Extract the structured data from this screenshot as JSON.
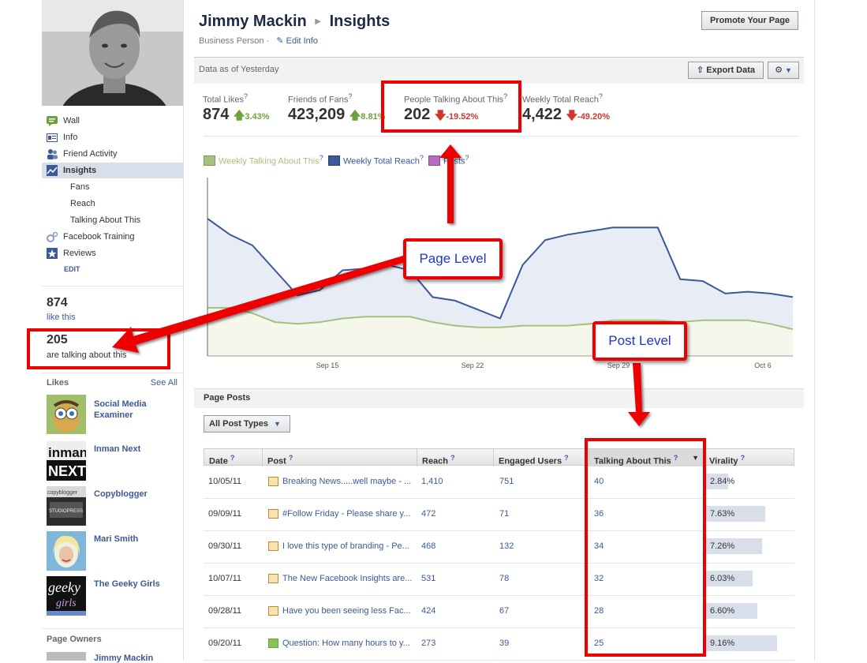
{
  "page": {
    "name": "Jimmy Mackin",
    "section": "Insights",
    "subtitle": "Business Person ·",
    "edit_info": "Edit Info",
    "promote_button": "Promote Your Page",
    "data_as_of": "Data as of Yesterday",
    "export_button": "Export Data"
  },
  "sidebar": {
    "nav": [
      {
        "label": "Wall",
        "icon": "wall-icon"
      },
      {
        "label": "Info",
        "icon": "info-icon"
      },
      {
        "label": "Friend Activity",
        "icon": "friends-icon"
      },
      {
        "label": "Insights",
        "icon": "insights-icon",
        "active": true
      }
    ],
    "subnav": [
      "Fans",
      "Reach",
      "Talking About This"
    ],
    "nav2": [
      {
        "label": "Facebook Training",
        "icon": "gears-icon"
      },
      {
        "label": "Reviews",
        "icon": "star-icon"
      }
    ],
    "edit": "EDIT",
    "likes_count": "874",
    "likes_text": "like this",
    "talking_count": "205",
    "talking_text": "are talking about this",
    "likes_header": "Likes",
    "see_all": "See All",
    "liked_pages": [
      "Social Media Examiner",
      "Inman Next",
      "Copyblogger",
      "Mari Smith",
      "The Geeky Girls"
    ],
    "owners_header": "Page Owners",
    "owner_name": "Jimmy Mackin"
  },
  "stats": [
    {
      "label": "Total Likes",
      "value": "874",
      "change": "3.43%",
      "direction": "up"
    },
    {
      "label": "Friends of Fans",
      "value": "423,209",
      "change": "8.81%",
      "direction": "up"
    },
    {
      "label": "People Talking About This",
      "value": "202",
      "change": "-19.52%",
      "direction": "down"
    },
    {
      "label": "Weekly Total Reach",
      "value": "4,422",
      "change": "-49.20%",
      "direction": "down"
    }
  ],
  "legend": [
    {
      "label": "Weekly Talking About This",
      "color": "#a6c17d"
    },
    {
      "label": "Weekly Total Reach",
      "color": "#3b5998"
    },
    {
      "label": "Posts",
      "color": "#b86bc0"
    }
  ],
  "chart_data": {
    "type": "area",
    "x_ticks": [
      "Sep 15",
      "Sep 22",
      "Sep 29",
      "Oct 6"
    ],
    "series": [
      {
        "name": "Weekly Total Reach",
        "color": "#3b5998",
        "values": [
          0.77,
          0.68,
          0.62,
          0.48,
          0.34,
          0.37,
          0.48,
          0.49,
          0.51,
          0.48,
          0.33,
          0.31,
          0.26,
          0.21,
          0.51,
          0.65,
          0.68,
          0.7,
          0.72,
          0.72,
          0.72,
          0.43,
          0.42,
          0.35,
          0.36,
          0.35,
          0.33
        ]
      },
      {
        "name": "Weekly Talking About This",
        "color": "#a6c17d",
        "values": [
          0.27,
          0.27,
          0.24,
          0.19,
          0.18,
          0.19,
          0.21,
          0.22,
          0.22,
          0.22,
          0.19,
          0.17,
          0.16,
          0.16,
          0.17,
          0.17,
          0.17,
          0.18,
          0.2,
          0.2,
          0.2,
          0.19,
          0.2,
          0.2,
          0.2,
          0.18,
          0.15
        ]
      }
    ]
  },
  "posts": {
    "header": "Page Posts",
    "filter": "All Post Types",
    "columns": [
      "Date",
      "Post",
      "Reach",
      "Engaged Users",
      "Talking About This",
      "Virality"
    ],
    "rows": [
      {
        "date": "10/05/11",
        "post": "Breaking News.....well maybe - ...",
        "reach": "1,410",
        "engaged": "751",
        "talking": "40",
        "virality": "2.84%",
        "virality_value": 2.84
      },
      {
        "date": "09/09/11",
        "post": "#Follow Friday - Please share y...",
        "reach": "472",
        "engaged": "71",
        "talking": "36",
        "virality": "7.63%",
        "virality_value": 7.63
      },
      {
        "date": "09/30/11",
        "post": "I love this type of branding - Pe...",
        "reach": "468",
        "engaged": "132",
        "talking": "34",
        "virality": "7.26%",
        "virality_value": 7.26
      },
      {
        "date": "10/07/11",
        "post": "The New Facebook Insights are...",
        "reach": "531",
        "engaged": "78",
        "talking": "32",
        "virality": "6.03%",
        "virality_value": 6.03
      },
      {
        "date": "09/28/11",
        "post": "Have you been seeing less Fac...",
        "reach": "424",
        "engaged": "67",
        "talking": "28",
        "virality": "6.60%",
        "virality_value": 6.6
      },
      {
        "date": "09/20/11",
        "post": "Question: How many hours to y...",
        "reach": "273",
        "engaged": "39",
        "talking": "25",
        "virality": "9.16%",
        "virality_value": 9.16
      }
    ]
  },
  "annotations": {
    "page_level": "Page Level",
    "post_level": "Post Level"
  }
}
